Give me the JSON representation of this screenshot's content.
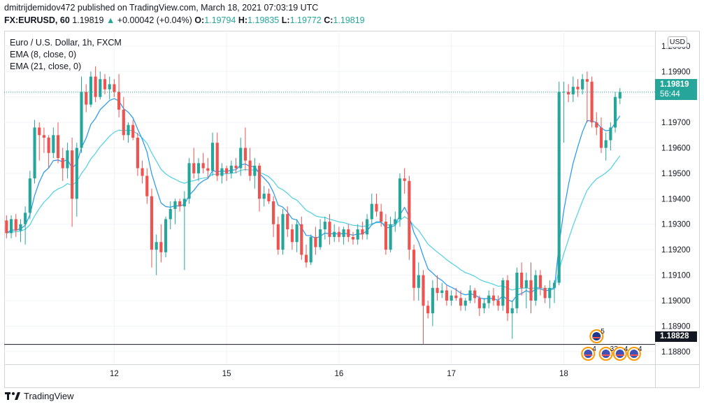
{
  "header": {
    "publisher_line": "dmitrijdemidov472 published on TradingView.com, March 18, 2021 07:03:19 UTC",
    "symbol": "FX:EURUSD, 60",
    "last_price": "1.19819",
    "change_arrow": "▲",
    "change": "+0.00042 (+0.04%)",
    "o_label": "O:",
    "o_value": "1.19794",
    "h_label": "H:",
    "h_value": "1.19835",
    "l_label": "L:",
    "l_value": "1.19772",
    "c_label": "C:",
    "c_value": "1.19819"
  },
  "legend": {
    "title": "Euro / U.S. Dollar, 1h, FXCM",
    "ema8": "EMA (8, close, 0)",
    "ema21": "EMA (21, close, 0)"
  },
  "currency_badge": "USD",
  "price_tags": {
    "current_price": "1.19819",
    "countdown": "56:44",
    "hline_price": "1.18828"
  },
  "footer": {
    "brand": "TradingView"
  },
  "event_markers": [
    {
      "label": "5",
      "row": "top"
    },
    {
      "label": "4",
      "row": "bottom"
    },
    {
      "label": "33",
      "row": "bottom"
    },
    {
      "label": "4",
      "row": "bottom"
    },
    {
      "label": "4",
      "row": "bottom"
    }
  ],
  "colors": {
    "up": "#26a69a",
    "down": "#ef5350",
    "ema8": "#2196f3",
    "ema21": "#4dd0e1",
    "grid": "#f0f3fa",
    "hline": "#131722",
    "current_line": "#26a69a"
  },
  "chart_data": {
    "type": "candlestick",
    "title": "Euro / U.S. Dollar, 1h, FXCM",
    "ylim": [
      1.1875,
      1.2006
    ],
    "y_ticks": [
      "1.18800",
      "1.18900",
      "1.19000",
      "1.19100",
      "1.19200",
      "1.19300",
      "1.19400",
      "1.19500",
      "1.19600",
      "1.19700",
      "1.19800",
      "1.19900",
      "1.20000"
    ],
    "x_ticks": [
      {
        "label": "12",
        "index": 23
      },
      {
        "label": "15",
        "index": 47
      },
      {
        "label": "16",
        "index": 71
      },
      {
        "label": "17",
        "index": 95
      },
      {
        "label": "18",
        "index": 119
      }
    ],
    "n_slots": 139,
    "hline": 1.18828,
    "current_price": 1.19819,
    "candles": [
      [
        1.19315,
        1.19335,
        1.19245,
        1.19265
      ],
      [
        1.19265,
        1.19335,
        1.19245,
        1.1932
      ],
      [
        1.1932,
        1.1934,
        1.1925,
        1.19275
      ],
      [
        1.19275,
        1.1932,
        1.1923,
        1.193
      ],
      [
        1.193,
        1.1937,
        1.1922,
        1.19345
      ],
      [
        1.19345,
        1.1951,
        1.1932,
        1.1948
      ],
      [
        1.1948,
        1.1971,
        1.1946,
        1.1968
      ],
      [
        1.1968,
        1.197,
        1.1955,
        1.1965
      ],
      [
        1.1965,
        1.1968,
        1.1958,
        1.1964
      ],
      [
        1.1964,
        1.1965,
        1.1952,
        1.1958
      ],
      [
        1.1958,
        1.1968,
        1.1956,
        1.1965
      ],
      [
        1.1965,
        1.197,
        1.1954,
        1.1956
      ],
      [
        1.1956,
        1.196,
        1.1947,
        1.1952
      ],
      [
        1.1952,
        1.1962,
        1.1948,
        1.1959
      ],
      [
        1.1959,
        1.1964,
        1.1929,
        1.194
      ],
      [
        1.194,
        1.1962,
        1.1933,
        1.196
      ],
      [
        1.196,
        1.1988,
        1.1958,
        1.1982
      ],
      [
        1.1982,
        1.1985,
        1.1974,
        1.1977
      ],
      [
        1.1977,
        1.199,
        1.1976,
        1.1988
      ],
      [
        1.1988,
        1.1992,
        1.1978,
        1.198
      ],
      [
        1.198,
        1.199,
        1.1979,
        1.1987
      ],
      [
        1.1987,
        1.1989,
        1.1981,
        1.1983
      ],
      [
        1.1983,
        1.1988,
        1.1979,
        1.1985
      ],
      [
        1.1985,
        1.1987,
        1.198,
        1.1982
      ],
      [
        1.1982,
        1.1989,
        1.1972,
        1.1975
      ],
      [
        1.1975,
        1.198,
        1.1963,
        1.1965
      ],
      [
        1.1965,
        1.197,
        1.1962,
        1.1969
      ],
      [
        1.1969,
        1.1971,
        1.1963,
        1.1964
      ],
      [
        1.1964,
        1.1966,
        1.1949,
        1.1952
      ],
      [
        1.1952,
        1.1955,
        1.1946,
        1.1949
      ],
      [
        1.1949,
        1.1952,
        1.1938,
        1.1941
      ],
      [
        1.1941,
        1.1944,
        1.1913,
        1.192
      ],
      [
        1.192,
        1.1926,
        1.191,
        1.1923
      ],
      [
        1.1923,
        1.193,
        1.1915,
        1.1919
      ],
      [
        1.1919,
        1.1933,
        1.1917,
        1.1932
      ],
      [
        1.1932,
        1.1939,
        1.1928,
        1.1936
      ],
      [
        1.1936,
        1.194,
        1.193,
        1.1939
      ],
      [
        1.1939,
        1.194,
        1.1935,
        1.1937
      ],
      [
        1.1937,
        1.1943,
        1.1912,
        1.194
      ],
      [
        1.194,
        1.1956,
        1.1938,
        1.1954
      ],
      [
        1.1954,
        1.196,
        1.1948,
        1.195
      ],
      [
        1.195,
        1.1956,
        1.1947,
        1.1954
      ],
      [
        1.1954,
        1.1958,
        1.195,
        1.1952
      ],
      [
        1.1952,
        1.1956,
        1.1948,
        1.1951
      ],
      [
        1.1951,
        1.1966,
        1.1949,
        1.1962
      ],
      [
        1.1962,
        1.1966,
        1.1947,
        1.1949
      ],
      [
        1.1949,
        1.1954,
        1.1946,
        1.1952
      ],
      [
        1.1952,
        1.1953,
        1.1947,
        1.195
      ],
      [
        1.195,
        1.1955,
        1.1948,
        1.1953
      ],
      [
        1.1953,
        1.1956,
        1.195,
        1.1952
      ],
      [
        1.1952,
        1.1964,
        1.1949,
        1.196
      ],
      [
        1.196,
        1.1968,
        1.1951,
        1.1955
      ],
      [
        1.1955,
        1.196,
        1.1947,
        1.1949
      ],
      [
        1.1949,
        1.1956,
        1.1944,
        1.1953
      ],
      [
        1.1953,
        1.1954,
        1.1935,
        1.194
      ],
      [
        1.194,
        1.1945,
        1.1937,
        1.1942
      ],
      [
        1.1942,
        1.1944,
        1.1938,
        1.1939
      ],
      [
        1.1939,
        1.1941,
        1.1925,
        1.193
      ],
      [
        1.193,
        1.1933,
        1.1918,
        1.192
      ],
      [
        1.192,
        1.1936,
        1.1918,
        1.1934
      ],
      [
        1.1934,
        1.1937,
        1.1925,
        1.1928
      ],
      [
        1.1928,
        1.193,
        1.192,
        1.1923
      ],
      [
        1.1923,
        1.1932,
        1.1919,
        1.193
      ],
      [
        1.193,
        1.1933,
        1.1916,
        1.1918
      ],
      [
        1.1918,
        1.1922,
        1.1913,
        1.1915
      ],
      [
        1.1915,
        1.1926,
        1.1914,
        1.1925
      ],
      [
        1.1925,
        1.1929,
        1.1918,
        1.1921
      ],
      [
        1.1921,
        1.1932,
        1.192,
        1.1928
      ],
      [
        1.1928,
        1.1933,
        1.1924,
        1.1931
      ],
      [
        1.1931,
        1.1934,
        1.1922,
        1.1925
      ],
      [
        1.1925,
        1.193,
        1.1923,
        1.1927
      ],
      [
        1.1927,
        1.1929,
        1.1923,
        1.1925
      ],
      [
        1.1925,
        1.1929,
        1.1922,
        1.1928
      ],
      [
        1.1928,
        1.193,
        1.1923,
        1.1925
      ],
      [
        1.1925,
        1.1927,
        1.1922,
        1.1924
      ],
      [
        1.1924,
        1.193,
        1.1922,
        1.1928
      ],
      [
        1.1928,
        1.1931,
        1.1924,
        1.1926
      ],
      [
        1.1926,
        1.1934,
        1.1924,
        1.1932
      ],
      [
        1.1932,
        1.1942,
        1.193,
        1.1938
      ],
      [
        1.1938,
        1.1942,
        1.1933,
        1.1935
      ],
      [
        1.1935,
        1.1938,
        1.1929,
        1.1931
      ],
      [
        1.1931,
        1.1934,
        1.1918,
        1.192
      ],
      [
        1.192,
        1.1933,
        1.1919,
        1.193
      ],
      [
        1.193,
        1.1935,
        1.1927,
        1.1932
      ],
      [
        1.1932,
        1.195,
        1.1929,
        1.1948
      ],
      [
        1.1948,
        1.1952,
        1.1942,
        1.1947
      ],
      [
        1.1947,
        1.1949,
        1.1916,
        1.192
      ],
      [
        1.192,
        1.1922,
        1.19,
        1.1905
      ],
      [
        1.1905,
        1.1915,
        1.19,
        1.191
      ],
      [
        1.191,
        1.1912,
        1.1883,
        1.1898
      ],
      [
        1.1898,
        1.19,
        1.1893,
        1.1895
      ],
      [
        1.1895,
        1.1908,
        1.189,
        1.1905
      ],
      [
        1.1905,
        1.191,
        1.19,
        1.1903
      ],
      [
        1.1903,
        1.1907,
        1.1901,
        1.1904
      ],
      [
        1.1904,
        1.1906,
        1.1898,
        1.19
      ],
      [
        1.19,
        1.1904,
        1.1898,
        1.1902
      ],
      [
        1.1902,
        1.1905,
        1.19,
        1.1901
      ],
      [
        1.1901,
        1.1904,
        1.1896,
        1.1898
      ],
      [
        1.1898,
        1.1901,
        1.1896,
        1.19
      ],
      [
        1.19,
        1.1906,
        1.1899,
        1.1904
      ],
      [
        1.1904,
        1.1905,
        1.1899,
        1.1901
      ],
      [
        1.1901,
        1.1902,
        1.1894,
        1.1897
      ],
      [
        1.1897,
        1.1901,
        1.1895,
        1.1899
      ],
      [
        1.1899,
        1.1904,
        1.1897,
        1.1902
      ],
      [
        1.1902,
        1.1905,
        1.1898,
        1.19
      ],
      [
        1.19,
        1.1902,
        1.1896,
        1.1898
      ],
      [
        1.1898,
        1.1909,
        1.1896,
        1.1908
      ],
      [
        1.1908,
        1.191,
        1.1892,
        1.1895
      ],
      [
        1.1895,
        1.19,
        1.1885,
        1.1897
      ],
      [
        1.1897,
        1.1913,
        1.1895,
        1.1911
      ],
      [
        1.1911,
        1.1915,
        1.1902,
        1.1905
      ],
      [
        1.1905,
        1.1911,
        1.1897,
        1.1908
      ],
      [
        1.1908,
        1.1915,
        1.1895,
        1.19
      ],
      [
        1.19,
        1.1912,
        1.1898,
        1.191
      ],
      [
        1.191,
        1.1912,
        1.1902,
        1.1905
      ],
      [
        1.1905,
        1.1906,
        1.1899,
        1.1901
      ],
      [
        1.1901,
        1.1908,
        1.1897,
        1.1905
      ],
      [
        1.1905,
        1.1908,
        1.1899,
        1.1907
      ],
      [
        1.1907,
        1.1986,
        1.1906,
        1.1982
      ],
      [
        1.1982,
        1.1986,
        1.1962,
        1.1982
      ],
      [
        1.1982,
        1.1985,
        1.1978,
        1.1981
      ],
      [
        1.1981,
        1.1988,
        1.1978,
        1.1984
      ],
      [
        1.1984,
        1.1987,
        1.198,
        1.1983
      ],
      [
        1.1983,
        1.1989,
        1.1981,
        1.1987
      ],
      [
        1.1987,
        1.199,
        1.197,
        1.1986
      ],
      [
        1.1986,
        1.1988,
        1.1968,
        1.197
      ],
      [
        1.197,
        1.1974,
        1.1965,
        1.1968
      ],
      [
        1.1968,
        1.1972,
        1.1958,
        1.196
      ],
      [
        1.196,
        1.1966,
        1.1955,
        1.1963
      ],
      [
        1.1963,
        1.197,
        1.1959,
        1.1968
      ],
      [
        1.1968,
        1.1982,
        1.1966,
        1.198
      ],
      [
        1.19794,
        1.19835,
        1.19772,
        1.19819
      ]
    ]
  }
}
